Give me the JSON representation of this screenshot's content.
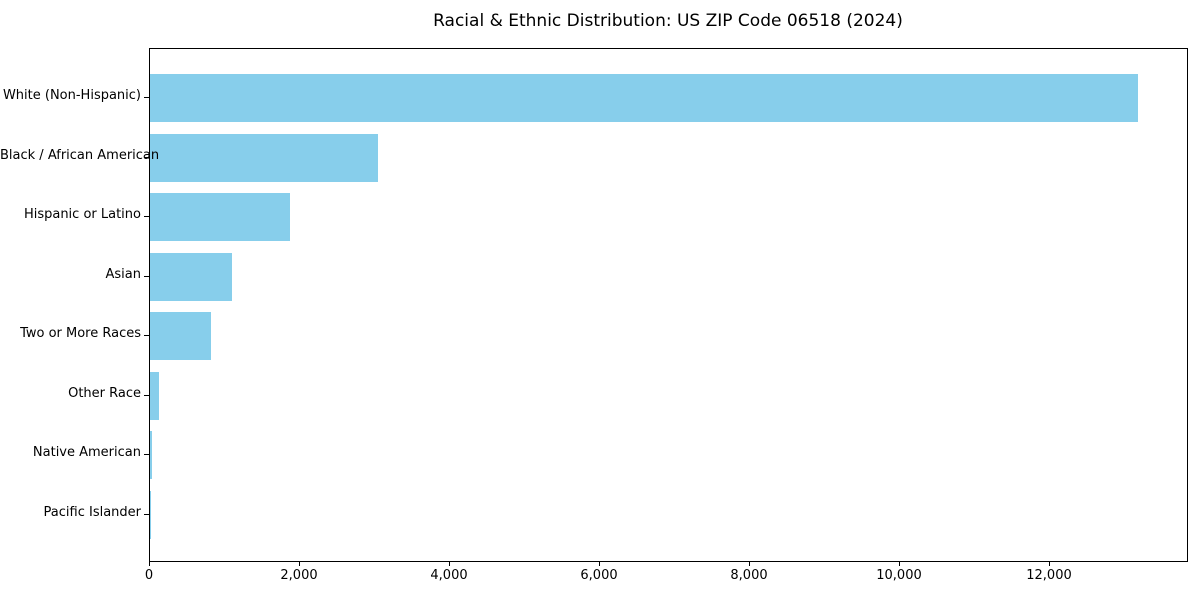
{
  "title": "Racial & Ethnic Distribution: US ZIP Code 06518 (2024)",
  "chart_data": {
    "type": "bar",
    "orientation": "horizontal",
    "title": "Racial & Ethnic Distribution: US ZIP Code 06518 (2024)",
    "categories": [
      "White (Non-Hispanic)",
      "Black / African American",
      "Hispanic or Latino",
      "Asian",
      "Two or More Races",
      "Other Race",
      "Native American",
      "Pacific Islander"
    ],
    "values": [
      13170,
      3040,
      1870,
      1090,
      815,
      120,
      20,
      10
    ],
    "xlabel": "",
    "ylabel": "",
    "xlim": [
      0,
      13830
    ],
    "xticks": [
      0,
      2000,
      4000,
      6000,
      8000,
      10000,
      12000
    ],
    "xtick_labels": [
      "0",
      "2,000",
      "4,000",
      "6,000",
      "8,000",
      "10,000",
      "12,000"
    ],
    "bar_color": "#87CEEB",
    "background_color": "#FFFFFF",
    "grid": false,
    "legend": null
  }
}
